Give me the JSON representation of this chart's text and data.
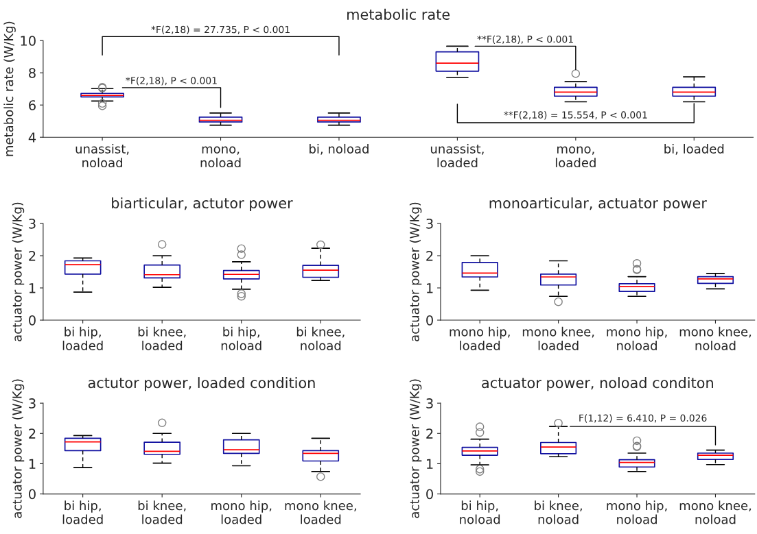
{
  "chart_data": [
    {
      "type": "box",
      "title": "metabolic rate",
      "ylabel": "metabolic rate (W/Kg)",
      "categories": [
        "unassist,\nnoload",
        "mono,\nnoload",
        "bi, noload",
        "unassist,\nloaded",
        "mono,\nloaded",
        "bi, loaded"
      ],
      "ylim": [
        4,
        10
      ],
      "yticks": [
        4,
        6,
        8,
        10
      ],
      "series": [
        {
          "color": "#1010a0",
          "boxes": [
            {
              "low": 6.25,
              "q1": 6.5,
              "median": 6.6,
              "q3": 6.72,
              "high": 7.02,
              "outliers": [
                7.1,
                7.05,
                6.1,
                5.95
              ]
            },
            {
              "low": 4.75,
              "q1": 4.95,
              "median": 5.05,
              "q3": 5.25,
              "high": 5.5
            },
            {
              "low": 4.75,
              "q1": 4.95,
              "median": 5.05,
              "q3": 5.25,
              "high": 5.5
            },
            {
              "low": 7.7,
              "q1": 8.1,
              "median": 8.6,
              "q3": 9.3,
              "high": 9.65
            },
            {
              "low": 6.2,
              "q1": 6.55,
              "median": 6.8,
              "q3": 7.1,
              "high": 7.45,
              "outliers": [
                7.95
              ]
            },
            {
              "low": 6.2,
              "q1": 6.55,
              "median": 6.8,
              "q3": 7.1,
              "high": 7.75
            }
          ]
        }
      ],
      "annotations": [
        "*F(2,18) = 27.735, P < 0.001",
        "*F(2,18), P < 0.001",
        "**F(2,18), P < 0.001",
        "**F(2,18) = 15.554, P < 0.001"
      ]
    },
    {
      "type": "box",
      "title": "biarticular, actutor power",
      "ylabel": "actuator power (W/Kg)",
      "categories": [
        "bi hip,\nloaded",
        "bi knee,\nloaded",
        "bi hip,\nnoload",
        "bi knee,\nnoload"
      ],
      "ylim": [
        0,
        3
      ],
      "yticks": [
        0,
        1,
        2,
        3
      ],
      "series": [
        {
          "color": "#1010a0",
          "boxes": [
            {
              "low": 0.87,
              "q1": 1.43,
              "median": 1.72,
              "q3": 1.84,
              "high": 1.93
            },
            {
              "low": 1.02,
              "q1": 1.31,
              "median": 1.41,
              "q3": 1.71,
              "high": 2.0,
              "outliers": [
                2.35
              ]
            },
            {
              "low": 0.96,
              "q1": 1.28,
              "median": 1.42,
              "q3": 1.54,
              "high": 1.81,
              "outliers": [
                2.22,
                2.03,
                0.82,
                0.74
              ]
            },
            {
              "low": 1.23,
              "q1": 1.33,
              "median": 1.55,
              "q3": 1.7,
              "high": 2.23,
              "outliers": [
                2.34
              ]
            }
          ]
        }
      ]
    },
    {
      "type": "box",
      "title": "monoarticular, actuator power",
      "ylabel": "actuator power (W/Kg)",
      "categories": [
        "mono hip,\nloaded",
        "mono knee,\nloaded",
        "mono hip,\nnoload",
        "mono knee,\nnoload"
      ],
      "ylim": [
        0,
        3
      ],
      "yticks": [
        0,
        1,
        2,
        3
      ],
      "series": [
        {
          "color": "#1010a0",
          "boxes": [
            {
              "low": 0.93,
              "q1": 1.34,
              "median": 1.46,
              "q3": 1.79,
              "high": 2.0
            },
            {
              "low": 0.74,
              "q1": 1.09,
              "median": 1.34,
              "q3": 1.43,
              "high": 1.84,
              "outliers": [
                0.57
              ]
            },
            {
              "low": 0.74,
              "q1": 0.89,
              "median": 1.04,
              "q3": 1.13,
              "high": 1.35,
              "outliers": [
                1.76,
                1.58,
                1.56
              ]
            },
            {
              "low": 0.97,
              "q1": 1.14,
              "median": 1.28,
              "q3": 1.35,
              "high": 1.45
            }
          ]
        }
      ]
    },
    {
      "type": "box",
      "title": "actutor power, loaded condition",
      "ylabel": "actuator power (W/Kg)",
      "categories": [
        "bi hip,\nloaded",
        "bi knee,\nloaded",
        "mono hip,\nloaded",
        "mono knee,\nloaded"
      ],
      "ylim": [
        0,
        3
      ],
      "yticks": [
        0,
        1,
        2,
        3
      ],
      "series": [
        {
          "color": "#1010a0",
          "boxes": [
            {
              "low": 0.87,
              "q1": 1.43,
              "median": 1.72,
              "q3": 1.84,
              "high": 1.93
            },
            {
              "low": 1.02,
              "q1": 1.31,
              "median": 1.41,
              "q3": 1.71,
              "high": 2.0,
              "outliers": [
                2.35
              ]
            },
            {
              "low": 0.93,
              "q1": 1.34,
              "median": 1.46,
              "q3": 1.79,
              "high": 2.0
            },
            {
              "low": 0.74,
              "q1": 1.09,
              "median": 1.34,
              "q3": 1.43,
              "high": 1.84,
              "outliers": [
                0.57
              ]
            }
          ]
        }
      ]
    },
    {
      "type": "box",
      "title": "actuator power, noload conditon",
      "ylabel": "actuator power (W/Kg)",
      "categories": [
        "bi hip,\nnoload",
        "bi knee,\nnoload",
        "mono hip,\nnoload",
        "mono knee,\nnoload"
      ],
      "ylim": [
        0,
        3
      ],
      "yticks": [
        0,
        1,
        2,
        3
      ],
      "series": [
        {
          "color": "#1010a0",
          "boxes": [
            {
              "low": 0.96,
              "q1": 1.28,
              "median": 1.42,
              "q3": 1.54,
              "high": 1.81,
              "outliers": [
                2.22,
                2.03,
                0.82,
                0.74
              ]
            },
            {
              "low": 1.23,
              "q1": 1.33,
              "median": 1.55,
              "q3": 1.7,
              "high": 2.23,
              "outliers": [
                2.34
              ]
            },
            {
              "low": 0.74,
              "q1": 0.89,
              "median": 1.04,
              "q3": 1.13,
              "high": 1.35,
              "outliers": [
                1.76,
                1.58,
                1.56
              ]
            },
            {
              "low": 0.97,
              "q1": 1.14,
              "median": 1.28,
              "q3": 1.35,
              "high": 1.45
            }
          ]
        }
      ],
      "annotations": [
        "F(1,12) = 6.410, P = 0.026"
      ]
    }
  ]
}
